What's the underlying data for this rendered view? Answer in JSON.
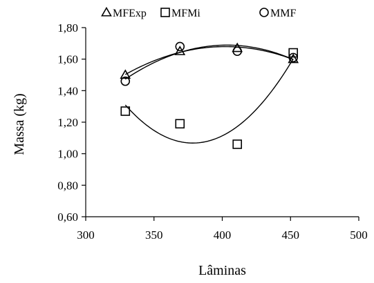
{
  "chart_data": {
    "type": "scatter",
    "xlabel": "Lâminas",
    "ylabel": "Massa (kg)",
    "xlim": [
      300,
      500
    ],
    "ylim": [
      0.6,
      1.8
    ],
    "x_ticks": [
      300,
      350,
      400,
      450,
      500
    ],
    "x_tick_labels": [
      "300",
      "350",
      "400",
      "450",
      "500"
    ],
    "y_ticks": [
      0.6,
      0.8,
      1.0,
      1.2,
      1.4,
      1.6,
      1.8
    ],
    "y_tick_labels": [
      "0,60",
      "0,80",
      "1,00",
      "1,20",
      "1,40",
      "1,60",
      "1,80"
    ],
    "grid": false,
    "legend_position": "top",
    "series": [
      {
        "name": "MFExp",
        "marker": "triangle",
        "x": [
          329,
          369,
          411,
          452
        ],
        "y": [
          1.5,
          1.65,
          1.67,
          1.6
        ],
        "trendline": "polynomial-2"
      },
      {
        "name": "MFMi",
        "marker": "square",
        "x": [
          329,
          369,
          411,
          452
        ],
        "y": [
          1.27,
          1.19,
          1.06,
          1.64
        ],
        "trendline": "polynomial-2"
      },
      {
        "name": "MMF",
        "marker": "circle",
        "x": [
          329,
          369,
          411,
          452
        ],
        "y": [
          1.46,
          1.68,
          1.65,
          1.61
        ],
        "trendline": "polynomial-2"
      }
    ]
  }
}
